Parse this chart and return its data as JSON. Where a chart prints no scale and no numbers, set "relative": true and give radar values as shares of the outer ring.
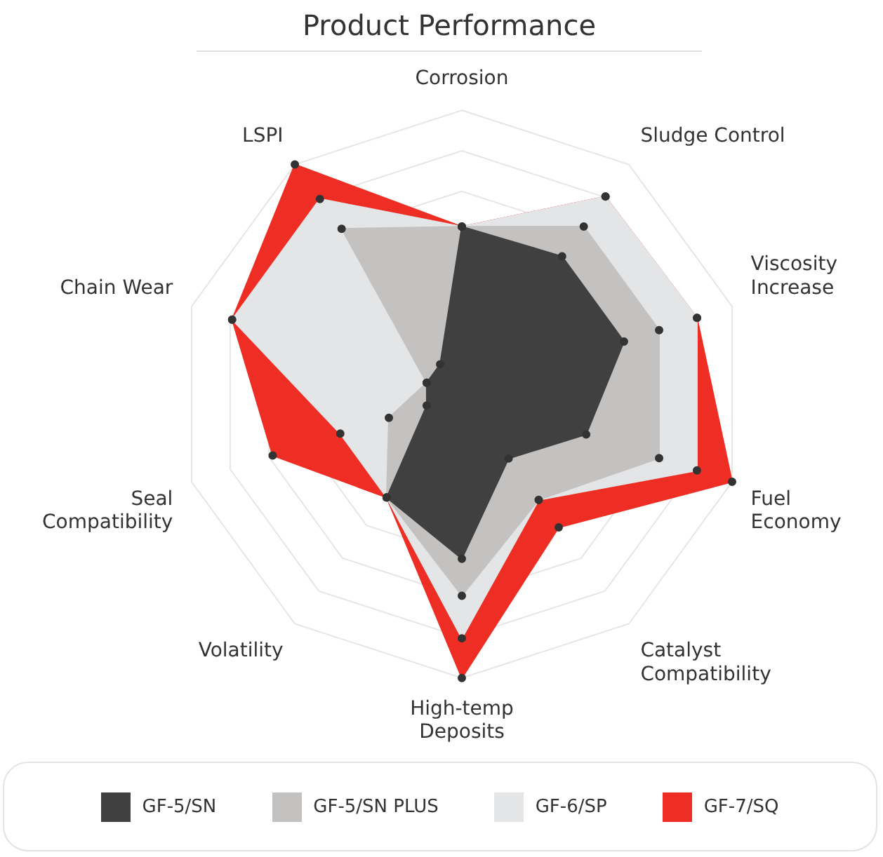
{
  "chart_data": {
    "type": "radar",
    "title": "Product Performance",
    "relative": true,
    "legend": "bottom",
    "marker": "circle",
    "categories": [
      "Corrosion",
      "Sludge Control",
      "Viscosity\nIncrease",
      "Fuel\nEconomy",
      "Catalyst\nCompatibility",
      "High-temp\nDeposits",
      "Volatility",
      "Seal\nCompatibility",
      "Chain Wear",
      "LSPI"
    ],
    "series": [
      {
        "name": "GF-5/SN",
        "color": "#404040",
        "values": [
          0.59,
          0.6,
          0.6,
          0.46,
          0.28,
          0.58,
          0.45,
          0.13,
          0.13,
          0.13
        ]
      },
      {
        "name": "GF-5/SN PLUS",
        "color": "#c4c2c0",
        "values": [
          0.59,
          0.73,
          0.73,
          0.73,
          0.46,
          0.71,
          0.45,
          0.27,
          0.13,
          0.72
        ]
      },
      {
        "name": "GF-6/SP",
        "color": "#e4e5e7",
        "values": [
          0.59,
          0.86,
          0.87,
          0.87,
          0.46,
          0.86,
          0.45,
          0.45,
          0.85,
          0.85
        ]
      },
      {
        "name": "GF-7/SQ",
        "color": "#ee2e24",
        "values": [
          0.59,
          0.86,
          0.87,
          1.0,
          0.58,
          1.0,
          0.45,
          0.7,
          0.85,
          1.0
        ]
      }
    ]
  }
}
